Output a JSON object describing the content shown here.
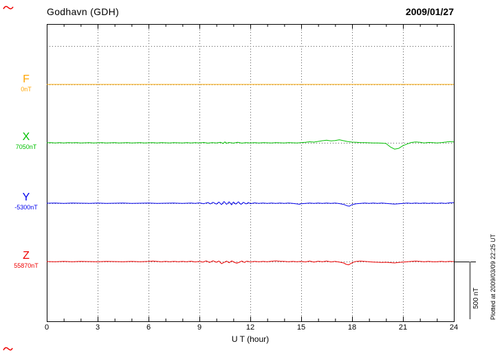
{
  "header": {
    "station": "Godhavn (GDH)",
    "date": "2009/01/27"
  },
  "axis": {
    "xlabel": "U T (hour)",
    "xmin": 0,
    "xmax": 24,
    "xticks": [
      0,
      3,
      6,
      9,
      12,
      15,
      18,
      21,
      24
    ]
  },
  "scalebar": {
    "label": "500 nT",
    "nT": 500
  },
  "footer": {
    "note": "Plotted at 2009/03/09 22:25 UT"
  },
  "colors": {
    "F": "#FFA500",
    "X": "#00C000",
    "Y": "#0000EE",
    "Z": "#EE0000",
    "grid": "#555555",
    "frame": "#000000",
    "mark": "#EE0000"
  },
  "series": [
    {
      "name": "F",
      "offset_label": "0nT",
      "color": "#FFA500"
    },
    {
      "name": "X",
      "offset_label": "7050nT",
      "color": "#00C000"
    },
    {
      "name": "Y",
      "offset_label": "-5300nT",
      "color": "#0000EE"
    },
    {
      "name": "Z",
      "offset_label": "55870nT",
      "color": "#EE0000"
    }
  ],
  "chart_data": {
    "type": "line",
    "title": "Godhavn (GDH) magnetogram",
    "date": "2009/01/27",
    "xlabel": "U T (hour)",
    "xlim": [
      0,
      24
    ],
    "xticks": [
      0,
      3,
      6,
      9,
      12,
      15,
      18,
      21,
      24
    ],
    "scale_bar_nT": 500,
    "grid": "dotted",
    "units": "points are [UT hour, deviation in nT from component baseline]",
    "series": [
      {
        "name": "F",
        "baseline_value_nT": 0,
        "color": "#FFA500",
        "points": [
          [
            0,
            0
          ],
          [
            24,
            0
          ]
        ]
      },
      {
        "name": "X",
        "baseline_value_nT": 7050,
        "color": "#00C000",
        "points": [
          [
            0,
            0
          ],
          [
            0.25,
            2
          ],
          [
            0.5,
            -1
          ],
          [
            0.75,
            1
          ],
          [
            1,
            -2
          ],
          [
            1.25,
            1
          ],
          [
            1.5,
            0
          ],
          [
            1.75,
            2
          ],
          [
            2,
            -1
          ],
          [
            2.25,
            0
          ],
          [
            2.5,
            1
          ],
          [
            2.75,
            -1
          ],
          [
            3,
            0
          ],
          [
            3.25,
            1
          ],
          [
            3.5,
            -1
          ],
          [
            3.75,
            0
          ],
          [
            4,
            1
          ],
          [
            4.25,
            -1
          ],
          [
            4.5,
            0
          ],
          [
            4.75,
            1
          ],
          [
            5,
            -1
          ],
          [
            5.25,
            0
          ],
          [
            5.5,
            1
          ],
          [
            5.75,
            -1
          ],
          [
            6,
            0
          ],
          [
            6.25,
            2
          ],
          [
            6.5,
            -2
          ],
          [
            6.75,
            1
          ],
          [
            7,
            0
          ],
          [
            7.25,
            -1
          ],
          [
            7.5,
            1
          ],
          [
            7.75,
            0
          ],
          [
            8,
            -1
          ],
          [
            8.25,
            1
          ],
          [
            8.5,
            -2
          ],
          [
            8.75,
            2
          ],
          [
            9,
            -1
          ],
          [
            9.25,
            3
          ],
          [
            9.5,
            -3
          ],
          [
            9.75,
            2
          ],
          [
            10,
            -2
          ],
          [
            10.25,
            4
          ],
          [
            10.4,
            -6
          ],
          [
            10.5,
            8
          ],
          [
            10.6,
            -4
          ],
          [
            10.75,
            3
          ],
          [
            11,
            -3
          ],
          [
            11.25,
            5
          ],
          [
            11.5,
            -3
          ],
          [
            11.75,
            2
          ],
          [
            12,
            -1
          ],
          [
            12.25,
            1
          ],
          [
            12.5,
            -1
          ],
          [
            12.75,
            1
          ],
          [
            13,
            0
          ],
          [
            13.25,
            -1
          ],
          [
            13.5,
            1
          ],
          [
            13.75,
            0
          ],
          [
            14,
            -1
          ],
          [
            14.25,
            1
          ],
          [
            14.5,
            0
          ],
          [
            14.75,
            -1
          ],
          [
            15,
            1
          ],
          [
            15.25,
            4
          ],
          [
            15.5,
            9
          ],
          [
            15.75,
            6
          ],
          [
            16,
            12
          ],
          [
            16.25,
            18
          ],
          [
            16.5,
            22
          ],
          [
            16.75,
            16
          ],
          [
            17,
            19
          ],
          [
            17.25,
            26
          ],
          [
            17.5,
            18
          ],
          [
            17.75,
            10
          ],
          [
            18,
            6
          ],
          [
            18.25,
            4
          ],
          [
            18.5,
            2
          ],
          [
            18.75,
            1
          ],
          [
            19,
            0
          ],
          [
            19.25,
            -1
          ],
          [
            19.5,
            -2
          ],
          [
            19.75,
            -3
          ],
          [
            20,
            -6
          ],
          [
            20.25,
            -35
          ],
          [
            20.5,
            -55
          ],
          [
            20.75,
            -48
          ],
          [
            21,
            -25
          ],
          [
            21.25,
            -10
          ],
          [
            21.5,
            3
          ],
          [
            21.75,
            8
          ],
          [
            22,
            4
          ],
          [
            22.25,
            -2
          ],
          [
            22.5,
            3
          ],
          [
            22.75,
            1
          ],
          [
            23,
            -1
          ],
          [
            23.25,
            2
          ],
          [
            23.5,
            6
          ],
          [
            23.75,
            10
          ],
          [
            24,
            8
          ]
        ]
      },
      {
        "name": "Y",
        "baseline_value_nT": -5300,
        "color": "#0000EE",
        "points": [
          [
            0,
            0
          ],
          [
            0.5,
            1
          ],
          [
            1,
            -1
          ],
          [
            1.5,
            1
          ],
          [
            2,
            0
          ],
          [
            2.5,
            -1
          ],
          [
            3,
            1
          ],
          [
            3.5,
            -1
          ],
          [
            4,
            0
          ],
          [
            4.5,
            1
          ],
          [
            5,
            -1
          ],
          [
            5.5,
            0
          ],
          [
            6,
            1
          ],
          [
            6.5,
            -1
          ],
          [
            7,
            0
          ],
          [
            7.5,
            1
          ],
          [
            8,
            -1
          ],
          [
            8.5,
            2
          ],
          [
            8.75,
            -2
          ],
          [
            9,
            3
          ],
          [
            9.25,
            -4
          ],
          [
            9.5,
            6
          ],
          [
            9.65,
            -6
          ],
          [
            9.8,
            8
          ],
          [
            10,
            -8
          ],
          [
            10.15,
            10
          ],
          [
            10.3,
            -12
          ],
          [
            10.45,
            14
          ],
          [
            10.6,
            -10
          ],
          [
            10.75,
            12
          ],
          [
            10.9,
            -14
          ],
          [
            11,
            10
          ],
          [
            11.15,
            -8
          ],
          [
            11.3,
            12
          ],
          [
            11.45,
            -10
          ],
          [
            11.6,
            8
          ],
          [
            11.75,
            -6
          ],
          [
            11.9,
            6
          ],
          [
            12,
            -4
          ],
          [
            12.25,
            3
          ],
          [
            12.5,
            -2
          ],
          [
            12.75,
            2
          ],
          [
            13,
            -1
          ],
          [
            13.25,
            1
          ],
          [
            13.5,
            -2
          ],
          [
            13.75,
            2
          ],
          [
            14,
            -1
          ],
          [
            14.25,
            1
          ],
          [
            14.5,
            -2
          ],
          [
            14.75,
            -6
          ],
          [
            14.9,
            -9
          ],
          [
            15,
            -4
          ],
          [
            15.25,
            -1
          ],
          [
            15.5,
            1
          ],
          [
            15.75,
            -1
          ],
          [
            16,
            1
          ],
          [
            16.25,
            -2
          ],
          [
            16.5,
            2
          ],
          [
            16.75,
            -1
          ],
          [
            17,
            1
          ],
          [
            17.25,
            -3
          ],
          [
            17.5,
            -10
          ],
          [
            17.7,
            -22
          ],
          [
            17.85,
            -25
          ],
          [
            18,
            -12
          ],
          [
            18.25,
            -4
          ],
          [
            18.5,
            -1
          ],
          [
            18.75,
            1
          ],
          [
            19,
            -1
          ],
          [
            19.25,
            2
          ],
          [
            19.5,
            -2
          ],
          [
            19.75,
            1
          ],
          [
            20,
            -1
          ],
          [
            20.25,
            -4
          ],
          [
            20.5,
            -7
          ],
          [
            20.75,
            -4
          ],
          [
            21,
            -2
          ],
          [
            21.25,
            1
          ],
          [
            21.5,
            -1
          ],
          [
            21.75,
            2
          ],
          [
            22,
            -2
          ],
          [
            22.25,
            1
          ],
          [
            22.5,
            -1
          ],
          [
            22.75,
            1
          ],
          [
            23,
            -2
          ],
          [
            23.25,
            2
          ],
          [
            23.5,
            -1
          ],
          [
            23.75,
            3
          ],
          [
            24,
            5
          ]
        ]
      },
      {
        "name": "Z",
        "baseline_value_nT": 55870,
        "color": "#EE0000",
        "points": [
          [
            0,
            0
          ],
          [
            0.5,
            -1
          ],
          [
            1,
            1
          ],
          [
            1.5,
            -1
          ],
          [
            2,
            1
          ],
          [
            2.5,
            0
          ],
          [
            3,
            -1
          ],
          [
            3.5,
            1
          ],
          [
            4,
            0
          ],
          [
            4.5,
            -1
          ],
          [
            5,
            1
          ],
          [
            5.5,
            -1
          ],
          [
            6,
            2
          ],
          [
            6.25,
            5
          ],
          [
            6.5,
            2
          ],
          [
            6.75,
            -1
          ],
          [
            7,
            1
          ],
          [
            7.25,
            -2
          ],
          [
            7.5,
            2
          ],
          [
            7.75,
            -1
          ],
          [
            8,
            1
          ],
          [
            8.25,
            -2
          ],
          [
            8.5,
            3
          ],
          [
            8.75,
            -3
          ],
          [
            9,
            2
          ],
          [
            9.2,
            -5
          ],
          [
            9.4,
            6
          ],
          [
            9.6,
            -8
          ],
          [
            9.8,
            7
          ],
          [
            10,
            -6
          ],
          [
            10.15,
            5
          ],
          [
            10.3,
            -18
          ],
          [
            10.45,
            -8
          ],
          [
            10.6,
            4
          ],
          [
            10.75,
            -10
          ],
          [
            10.9,
            6
          ],
          [
            11.05,
            -6
          ],
          [
            11.2,
            -14
          ],
          [
            11.35,
            -6
          ],
          [
            11.5,
            5
          ],
          [
            11.65,
            -8
          ],
          [
            11.8,
            4
          ],
          [
            12,
            -3
          ],
          [
            12.25,
            2
          ],
          [
            12.5,
            -2
          ],
          [
            12.75,
            1
          ],
          [
            13,
            -1
          ],
          [
            13.25,
            3
          ],
          [
            13.5,
            6
          ],
          [
            13.75,
            3
          ],
          [
            14,
            1
          ],
          [
            14.25,
            -1
          ],
          [
            14.5,
            2
          ],
          [
            14.75,
            -2
          ],
          [
            15,
            1
          ],
          [
            15.25,
            -3
          ],
          [
            15.5,
            4
          ],
          [
            15.75,
            -4
          ],
          [
            16,
            3
          ],
          [
            16.25,
            -2
          ],
          [
            16.5,
            5
          ],
          [
            16.75,
            -3
          ],
          [
            17,
            2
          ],
          [
            17.25,
            -4
          ],
          [
            17.5,
            -12
          ],
          [
            17.65,
            -24
          ],
          [
            17.8,
            -28
          ],
          [
            17.95,
            -14
          ],
          [
            18.1,
            -4
          ],
          [
            18.25,
            2
          ],
          [
            18.5,
            4
          ],
          [
            18.75,
            1
          ],
          [
            19,
            -2
          ],
          [
            19.25,
            -4
          ],
          [
            19.5,
            -6
          ],
          [
            19.75,
            -8
          ],
          [
            20,
            -6
          ],
          [
            20.25,
            -9
          ],
          [
            20.5,
            -12
          ],
          [
            20.75,
            -8
          ],
          [
            21,
            -5
          ],
          [
            21.25,
            -2
          ],
          [
            21.5,
            2
          ],
          [
            21.75,
            4
          ],
          [
            22,
            2
          ],
          [
            22.25,
            -1
          ],
          [
            22.5,
            1
          ],
          [
            22.75,
            -1
          ],
          [
            23,
            -2
          ],
          [
            23.25,
            1
          ],
          [
            23.5,
            -1
          ],
          [
            23.75,
            2
          ],
          [
            24,
            0
          ]
        ]
      }
    ]
  }
}
